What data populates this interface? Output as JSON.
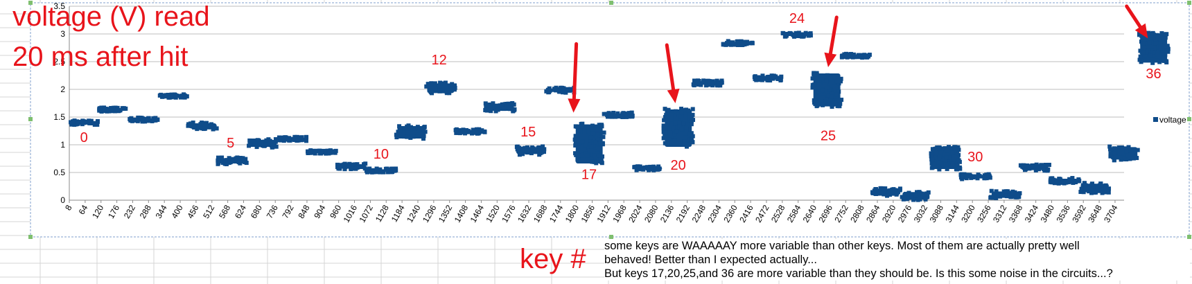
{
  "annotation": {
    "title_line1": "voltage (V) read",
    "title_line2": "20 ms after hit",
    "xlabel": "key #",
    "note_lines": [
      "some keys are WAAAAAY more variable than other keys. Most of them are actually pretty well",
      "behaved! Better than I expected actually...",
      "But keys 17,20,25,and 36 are more variable than they should be. Is this some noise in the circuits...?"
    ]
  },
  "colors": {
    "series": "#0f4c8a",
    "annotation": "#e8141b",
    "gridline": "#bdbdbd",
    "sheet_grid": "#d4d4d4"
  },
  "chart_data": {
    "type": "scatter",
    "xlabel": "key #",
    "ylabel": "voltage (V) read 20 ms after hit",
    "ylim": [
      0,
      3.5
    ],
    "yticks": [
      0,
      0.5,
      1,
      1.5,
      2,
      2.5,
      3,
      3.5
    ],
    "xlim": [
      8,
      3736
    ],
    "xticks": [
      8,
      64,
      120,
      176,
      232,
      288,
      344,
      400,
      456,
      512,
      568,
      624,
      680,
      736,
      792,
      848,
      904,
      960,
      1016,
      1072,
      1128,
      1184,
      1240,
      1296,
      1352,
      1408,
      1464,
      1520,
      1576,
      1632,
      1688,
      1744,
      1800,
      1856,
      1912,
      1968,
      2024,
      2080,
      2136,
      2192,
      2248,
      2304,
      2360,
      2416,
      2472,
      2528,
      2584,
      2640,
      2696,
      2752,
      2808,
      2864,
      2920,
      2976,
      3032,
      3088,
      3144,
      3200,
      3256,
      3312,
      3368,
      3424,
      3480,
      3536,
      3592,
      3648,
      3704
    ],
    "grid": true,
    "legend_position": "right",
    "series": [
      {
        "name": "voltage",
        "clusters": [
          {
            "key": 0,
            "x_start": 8,
            "x_end": 113,
            "y_min": 1.36,
            "y_max": 1.44
          },
          {
            "key": 1,
            "x_start": 113,
            "x_end": 218,
            "y_min": 1.6,
            "y_max": 1.67
          },
          {
            "key": 2,
            "x_start": 218,
            "x_end": 323,
            "y_min": 1.42,
            "y_max": 1.49
          },
          {
            "key": 3,
            "x_start": 323,
            "x_end": 428,
            "y_min": 1.85,
            "y_max": 1.91
          },
          {
            "key": 4,
            "x_start": 428,
            "x_end": 533,
            "y_min": 1.28,
            "y_max": 1.4
          },
          {
            "key": 5,
            "x_start": 533,
            "x_end": 638,
            "y_min": 0.65,
            "y_max": 0.77
          },
          {
            "key": 6,
            "x_start": 638,
            "x_end": 743,
            "y_min": 0.95,
            "y_max": 1.1
          },
          {
            "key": 7,
            "x_start": 743,
            "x_end": 848,
            "y_min": 1.07,
            "y_max": 1.14
          },
          {
            "key": 8,
            "x_start": 848,
            "x_end": 953,
            "y_min": 0.84,
            "y_max": 0.9
          },
          {
            "key": 9,
            "x_start": 953,
            "x_end": 1058,
            "y_min": 0.56,
            "y_max": 0.66
          },
          {
            "key": 10,
            "x_start": 1058,
            "x_end": 1163,
            "y_min": 0.5,
            "y_max": 0.57
          },
          {
            "key": 11,
            "x_start": 1163,
            "x_end": 1268,
            "y_min": 1.1,
            "y_max": 1.35
          },
          {
            "key": 12,
            "x_start": 1268,
            "x_end": 1373,
            "y_min": 1.92,
            "y_max": 2.12
          },
          {
            "key": 13,
            "x_start": 1373,
            "x_end": 1478,
            "y_min": 1.2,
            "y_max": 1.28
          },
          {
            "key": 14,
            "x_start": 1478,
            "x_end": 1583,
            "y_min": 1.6,
            "y_max": 1.75
          },
          {
            "key": 15,
            "x_start": 1583,
            "x_end": 1688,
            "y_min": 0.82,
            "y_max": 0.97
          },
          {
            "key": 16,
            "x_start": 1688,
            "x_end": 1793,
            "y_min": 1.94,
            "y_max": 2.03
          },
          {
            "key": 17,
            "x_start": 1793,
            "x_end": 1898,
            "y_min": 0.65,
            "y_max": 1.38
          },
          {
            "key": 18,
            "x_start": 1898,
            "x_end": 2003,
            "y_min": 1.5,
            "y_max": 1.58
          },
          {
            "key": 19,
            "x_start": 2003,
            "x_end": 2108,
            "y_min": 0.54,
            "y_max": 0.61
          },
          {
            "key": 20,
            "x_start": 2108,
            "x_end": 2213,
            "y_min": 0.95,
            "y_max": 1.65
          },
          {
            "key": 21,
            "x_start": 2213,
            "x_end": 2318,
            "y_min": 2.07,
            "y_max": 2.16
          },
          {
            "key": 22,
            "x_start": 2318,
            "x_end": 2423,
            "y_min": 2.8,
            "y_max": 2.87
          },
          {
            "key": 23,
            "x_start": 2423,
            "x_end": 2528,
            "y_min": 2.16,
            "y_max": 2.25
          },
          {
            "key": 24,
            "x_start": 2528,
            "x_end": 2633,
            "y_min": 2.95,
            "y_max": 3.02
          },
          {
            "key": 25,
            "x_start": 2633,
            "x_end": 2738,
            "y_min": 1.68,
            "y_max": 2.3
          },
          {
            "key": 26,
            "x_start": 2738,
            "x_end": 2843,
            "y_min": 2.57,
            "y_max": 2.64
          },
          {
            "key": 27,
            "x_start": 2843,
            "x_end": 2948,
            "y_min": 0.08,
            "y_max": 0.22
          },
          {
            "key": 28,
            "x_start": 2948,
            "x_end": 3053,
            "y_min": 0.0,
            "y_max": 0.16
          },
          {
            "key": 29,
            "x_start": 3053,
            "x_end": 3158,
            "y_min": 0.55,
            "y_max": 0.98
          },
          {
            "key": 30,
            "x_start": 3158,
            "x_end": 3263,
            "y_min": 0.38,
            "y_max": 0.47
          },
          {
            "key": 31,
            "x_start": 3263,
            "x_end": 3368,
            "y_min": 0.03,
            "y_max": 0.17
          },
          {
            "key": 32,
            "x_start": 3368,
            "x_end": 3473,
            "y_min": 0.53,
            "y_max": 0.65
          },
          {
            "key": 33,
            "x_start": 3473,
            "x_end": 3578,
            "y_min": 0.3,
            "y_max": 0.4
          },
          {
            "key": 34,
            "x_start": 3578,
            "x_end": 3683,
            "y_min": 0.13,
            "y_max": 0.31
          },
          {
            "key": 35,
            "x_start": 3683,
            "x_end": 3788,
            "y_min": 0.72,
            "y_max": 0.97
          },
          {
            "key": 36,
            "x_start": 3788,
            "x_end": 3893,
            "y_min": 2.47,
            "y_max": 3.02
          }
        ]
      }
    ],
    "key_labels": [
      {
        "text": "0",
        "x": 60,
        "y": 1.05
      },
      {
        "text": "5",
        "x": 578,
        "y": 0.95
      },
      {
        "text": "10",
        "x": 1110,
        "y": 0.75
      },
      {
        "text": "12",
        "x": 1315,
        "y": 2.45
      },
      {
        "text": "15",
        "x": 1630,
        "y": 1.15
      },
      {
        "text": "17",
        "x": 1845,
        "y": 0.38
      },
      {
        "text": "20",
        "x": 2160,
        "y": 0.55
      },
      {
        "text": "24",
        "x": 2580,
        "y": 3.2
      },
      {
        "text": "25",
        "x": 2690,
        "y": 1.08
      },
      {
        "text": "30",
        "x": 3210,
        "y": 0.7
      },
      {
        "text": "36",
        "x": 3840,
        "y": 2.2
      }
    ],
    "arrows": [
      {
        "key": 17,
        "x_from": 1800,
        "y_from": 2.82,
        "x_to": 1790,
        "y_to": 1.58
      },
      {
        "key": 20,
        "x_from": 2120,
        "y_from": 2.8,
        "x_to": 2150,
        "y_to": 1.75
      },
      {
        "key": 25,
        "x_from": 2720,
        "y_from": 3.3,
        "x_to": 2690,
        "y_to": 2.4
      },
      {
        "key": 36,
        "x_from": 3745,
        "y_from": 3.5,
        "x_to": 3820,
        "y_to": 2.92
      }
    ]
  }
}
